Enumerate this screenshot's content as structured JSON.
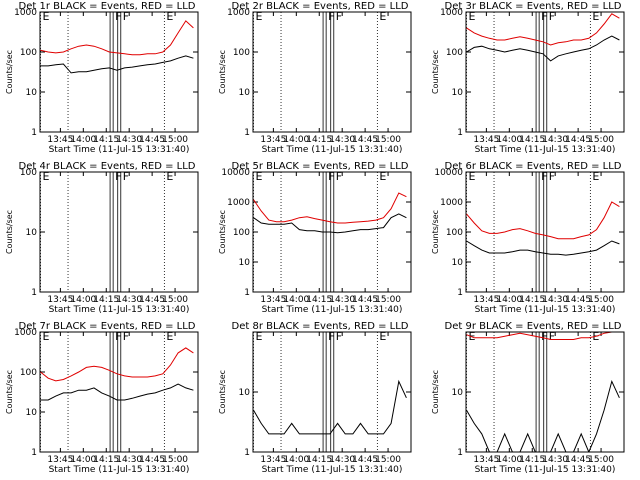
{
  "markers": [
    {
      "x": 812,
      "style": "dotted",
      "label": "E"
    },
    {
      "x": 830,
      "style": "dotted"
    },
    {
      "x": 857.5,
      "style": "solid"
    },
    {
      "x": 859.5,
      "style": "solid",
      "label": "F"
    },
    {
      "x": 862.5,
      "style": "solid"
    },
    {
      "x": 864.5,
      "style": "solid",
      "label": "F"
    },
    {
      "x": 893,
      "style": "dotted",
      "label": "E"
    }
  ],
  "chart_data": [
    {
      "type": "line",
      "title": "Det 1r BLACK = Events, RED = LLD",
      "ylabel": "Counts/sec",
      "xlabel": "Start Time (11-Jul-15 13:31:40)",
      "log_y": true,
      "xlim": [
        811.67,
        915
      ],
      "xticks": [
        {
          "value": 825,
          "label": "13:45"
        },
        {
          "value": 840,
          "label": "14:00"
        },
        {
          "value": 855,
          "label": "14:15"
        },
        {
          "value": 870,
          "label": "14:30"
        },
        {
          "value": 885,
          "label": "14:45"
        },
        {
          "value": 900,
          "label": "15:00"
        }
      ],
      "ylim": [
        1,
        1000
      ],
      "yticks": [
        1,
        10,
        100,
        1000
      ],
      "x": [
        812,
        817,
        822,
        827,
        832,
        837,
        842,
        847,
        852,
        857,
        862,
        867,
        872,
        877,
        882,
        887,
        892,
        897,
        902,
        907,
        912
      ],
      "series": [
        {
          "color": "#000000",
          "values": [
            45,
            45,
            48,
            50,
            30,
            32,
            32,
            35,
            38,
            40,
            35,
            40,
            42,
            45,
            48,
            50,
            55,
            60,
            70,
            80,
            70
          ]
        },
        {
          "color": "#e00000",
          "values": [
            110,
            100,
            95,
            100,
            120,
            140,
            150,
            140,
            120,
            100,
            95,
            90,
            85,
            85,
            90,
            90,
            100,
            150,
            300,
            600,
            400
          ]
        }
      ]
    },
    {
      "type": "line",
      "title": "Det 2r BLACK = Events, RED = LLD",
      "ylabel": "Counts/sec",
      "xlabel": "Start Time (11-Jul-15 13:31:40)",
      "log_y": true,
      "xlim": [
        811.67,
        915
      ],
      "xticks": [
        {
          "value": 825,
          "label": "13:45"
        },
        {
          "value": 840,
          "label": "14:00"
        },
        {
          "value": 855,
          "label": "14:15"
        },
        {
          "value": 870,
          "label": "14:30"
        },
        {
          "value": 885,
          "label": "14:45"
        },
        {
          "value": 900,
          "label": "15:00"
        }
      ],
      "ylim": [
        1,
        1000
      ],
      "yticks": [
        1,
        10,
        100,
        1000
      ],
      "x": [],
      "series": []
    },
    {
      "type": "line",
      "title": "Det 3r BLACK = Events, RED = LLD",
      "ylabel": "Counts/sec",
      "xlabel": "Start Time (11-Jul-15 13:31:40)",
      "log_y": true,
      "xlim": [
        811.67,
        915
      ],
      "xticks": [
        {
          "value": 825,
          "label": "13:45"
        },
        {
          "value": 840,
          "label": "14:00"
        },
        {
          "value": 855,
          "label": "14:15"
        },
        {
          "value": 870,
          "label": "14:30"
        },
        {
          "value": 885,
          "label": "14:45"
        },
        {
          "value": 900,
          "label": "15:00"
        }
      ],
      "ylim": [
        1,
        1000
      ],
      "yticks": [
        1,
        10,
        100,
        1000
      ],
      "x": [
        812,
        817,
        822,
        827,
        832,
        837,
        842,
        847,
        852,
        857,
        862,
        867,
        872,
        877,
        882,
        887,
        892,
        897,
        902,
        907,
        912
      ],
      "series": [
        {
          "color": "#000000",
          "values": [
            100,
            130,
            140,
            120,
            110,
            100,
            110,
            120,
            110,
            100,
            90,
            60,
            80,
            90,
            100,
            110,
            120,
            150,
            200,
            250,
            200
          ]
        },
        {
          "color": "#e00000",
          "values": [
            400,
            300,
            250,
            220,
            200,
            200,
            220,
            240,
            220,
            200,
            180,
            150,
            170,
            180,
            200,
            200,
            220,
            300,
            500,
            900,
            700
          ]
        }
      ]
    },
    {
      "type": "line",
      "title": "Det 4r BLACK = Events, RED = LLD",
      "ylabel": "Counts/sec",
      "xlabel": "Start Time (11-Jul-15 13:31:40)",
      "log_y": true,
      "xlim": [
        811.67,
        915
      ],
      "xticks": [
        {
          "value": 825,
          "label": "13:45"
        },
        {
          "value": 840,
          "label": "14:00"
        },
        {
          "value": 855,
          "label": "14:15"
        },
        {
          "value": 870,
          "label": "14:30"
        },
        {
          "value": 885,
          "label": "14:45"
        },
        {
          "value": 900,
          "label": "15:00"
        }
      ],
      "ylim": [
        1,
        100
      ],
      "yticks": [
        1,
        10,
        100
      ],
      "x": [],
      "series": []
    },
    {
      "type": "line",
      "title": "Det 5r BLACK = Events, RED = LLD",
      "ylabel": "Counts/sec",
      "xlabel": "Start Time (11-Jul-15 13:31:40)",
      "log_y": true,
      "xlim": [
        811.67,
        915
      ],
      "xticks": [
        {
          "value": 825,
          "label": "13:45"
        },
        {
          "value": 840,
          "label": "14:00"
        },
        {
          "value": 855,
          "label": "14:15"
        },
        {
          "value": 870,
          "label": "14:30"
        },
        {
          "value": 885,
          "label": "14:45"
        },
        {
          "value": 900,
          "label": "15:00"
        }
      ],
      "ylim": [
        1,
        10000
      ],
      "yticks": [
        1,
        10,
        100,
        1000,
        10000
      ],
      "x": [
        812,
        817,
        822,
        827,
        832,
        837,
        842,
        847,
        852,
        857,
        862,
        867,
        872,
        877,
        882,
        887,
        892,
        897,
        902,
        907,
        912
      ],
      "series": [
        {
          "color": "#000000",
          "values": [
            300,
            200,
            180,
            180,
            180,
            200,
            120,
            110,
            110,
            100,
            100,
            95,
            100,
            110,
            120,
            120,
            130,
            140,
            300,
            400,
            300
          ]
        },
        {
          "color": "#e00000",
          "values": [
            1200,
            500,
            250,
            220,
            220,
            250,
            300,
            320,
            280,
            250,
            220,
            200,
            200,
            210,
            220,
            230,
            250,
            300,
            600,
            2000,
            1500
          ]
        }
      ]
    },
    {
      "type": "line",
      "title": "Det 6r BLACK = Events, RED = LLD",
      "ylabel": "Counts/sec",
      "xlabel": "Start Time (11-Jul-15 13:31:40)",
      "log_y": true,
      "xlim": [
        811.67,
        915
      ],
      "xticks": [
        {
          "value": 825,
          "label": "13:45"
        },
        {
          "value": 840,
          "label": "14:00"
        },
        {
          "value": 855,
          "label": "14:15"
        },
        {
          "value": 870,
          "label": "14:30"
        },
        {
          "value": 885,
          "label": "14:45"
        },
        {
          "value": 900,
          "label": "15:00"
        }
      ],
      "ylim": [
        1,
        10000
      ],
      "yticks": [
        1,
        10,
        100,
        1000,
        10000
      ],
      "x": [
        812,
        817,
        822,
        827,
        832,
        837,
        842,
        847,
        852,
        857,
        862,
        867,
        872,
        877,
        882,
        887,
        892,
        897,
        902,
        907,
        912
      ],
      "series": [
        {
          "color": "#000000",
          "values": [
            50,
            35,
            25,
            20,
            20,
            20,
            22,
            25,
            25,
            22,
            20,
            18,
            18,
            17,
            18,
            20,
            22,
            25,
            35,
            50,
            40
          ]
        },
        {
          "color": "#e00000",
          "values": [
            400,
            200,
            110,
            90,
            90,
            100,
            120,
            130,
            110,
            90,
            80,
            70,
            60,
            60,
            60,
            70,
            80,
            120,
            300,
            1000,
            700
          ]
        }
      ]
    },
    {
      "type": "line",
      "title": "Det 7r BLACK = Events, RED = LLD",
      "ylabel": "Counts/sec",
      "xlabel": "Start Time (11-Jul-15 13:31:40)",
      "log_y": true,
      "xlim": [
        811.67,
        915
      ],
      "xticks": [
        {
          "value": 825,
          "label": "13:45"
        },
        {
          "value": 840,
          "label": "14:00"
        },
        {
          "value": 855,
          "label": "14:15"
        },
        {
          "value": 870,
          "label": "14:30"
        },
        {
          "value": 885,
          "label": "14:45"
        },
        {
          "value": 900,
          "label": "15:00"
        }
      ],
      "ylim": [
        1,
        1000
      ],
      "yticks": [
        1,
        10,
        100,
        1000
      ],
      "x": [
        812,
        817,
        822,
        827,
        832,
        837,
        842,
        847,
        852,
        857,
        862,
        867,
        872,
        877,
        882,
        887,
        892,
        897,
        902,
        907,
        912
      ],
      "series": [
        {
          "color": "#000000",
          "values": [
            20,
            20,
            25,
            30,
            30,
            35,
            35,
            40,
            30,
            25,
            20,
            20,
            22,
            25,
            28,
            30,
            35,
            40,
            50,
            40,
            35
          ]
        },
        {
          "color": "#e00000",
          "values": [
            100,
            70,
            60,
            65,
            80,
            100,
            130,
            140,
            130,
            110,
            90,
            80,
            75,
            75,
            75,
            80,
            90,
            150,
            300,
            400,
            300
          ]
        }
      ]
    },
    {
      "type": "line",
      "title": "Det 8r BLACK = Events, RED = LLD",
      "ylabel": "Counts/sec",
      "xlabel": "Start Time (11-Jul-15 13:31:40)",
      "log_y": true,
      "xlim": [
        811.67,
        915
      ],
      "xticks": [
        {
          "value": 825,
          "label": "13:45"
        },
        {
          "value": 840,
          "label": "14:00"
        },
        {
          "value": 855,
          "label": "14:15"
        },
        {
          "value": 870,
          "label": "14:30"
        },
        {
          "value": 885,
          "label": "14:45"
        },
        {
          "value": 900,
          "label": "15:00"
        }
      ],
      "ylim": [
        1,
        100
      ],
      "yticks": [
        1,
        10
      ],
      "x": [
        812,
        817,
        822,
        827,
        832,
        837,
        842,
        847,
        852,
        857,
        862,
        867,
        872,
        877,
        882,
        887,
        892,
        897,
        902,
        907,
        912
      ],
      "series": [
        {
          "color": "#000000",
          "values": [
            5,
            3,
            2,
            2,
            2,
            3,
            2,
            2,
            2,
            2,
            2,
            3,
            2,
            2,
            3,
            2,
            2,
            2,
            3,
            15,
            8
          ]
        }
      ]
    },
    {
      "type": "line",
      "title": "Det 9r BLACK = Events, RED = LLD",
      "ylabel": "Counts/sec",
      "xlabel": "Start Time (11-Jul-15 13:31:40)",
      "log_y": true,
      "xlim": [
        811.67,
        915
      ],
      "xticks": [
        {
          "value": 825,
          "label": "13:45"
        },
        {
          "value": 840,
          "label": "14:00"
        },
        {
          "value": 855,
          "label": "14:15"
        },
        {
          "value": 870,
          "label": "14:30"
        },
        {
          "value": 885,
          "label": "14:45"
        },
        {
          "value": 900,
          "label": "15:00"
        }
      ],
      "ylim": [
        1,
        100
      ],
      "yticks": [
        1,
        10
      ],
      "x": [
        812,
        817,
        822,
        827,
        832,
        837,
        842,
        847,
        852,
        857,
        862,
        867,
        872,
        877,
        882,
        887,
        892,
        897,
        902,
        907,
        912
      ],
      "series": [
        {
          "color": "#000000",
          "values": [
            5,
            3,
            2,
            1,
            1,
            2,
            1,
            1,
            2,
            1,
            1,
            1,
            2,
            1,
            1,
            2,
            1,
            2,
            5,
            15,
            8
          ]
        },
        {
          "color": "#e00000",
          "values": [
            90,
            80,
            80,
            80,
            80,
            85,
            90,
            95,
            90,
            85,
            80,
            75,
            75,
            75,
            75,
            80,
            80,
            85,
            95,
            100,
            100
          ]
        }
      ]
    }
  ]
}
